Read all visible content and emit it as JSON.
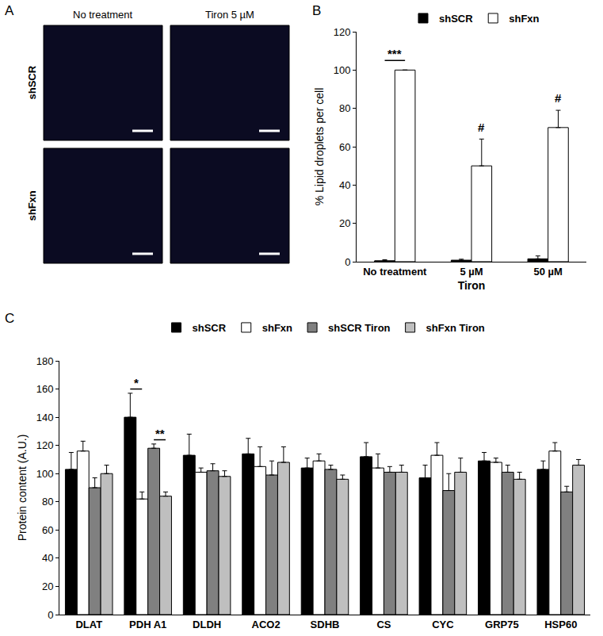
{
  "image_panel": {
    "panel_label": "A",
    "columns": [
      "No treatment",
      "Tiron 5 µM"
    ],
    "rows": [
      "shSCR",
      "shFxn"
    ]
  },
  "chart_data": [
    {
      "panel_label": "B",
      "type": "bar",
      "categories": [
        "No treatment",
        "5 µM",
        "50 µM"
      ],
      "x_label": "Tiron",
      "y_label": "% Lipid droplets per cell",
      "ylim": [
        0,
        120
      ],
      "yticks": [
        0,
        20,
        40,
        60,
        80,
        100,
        120
      ],
      "grid": false,
      "legend": "top",
      "series": [
        {
          "name": "shSCR",
          "color": "#000000",
          "values": [
            0.5,
            0.8,
            1.5
          ],
          "errors": [
            0.5,
            0.5,
            1.5
          ]
        },
        {
          "name": "shFxn",
          "color": "#ffffff",
          "values": [
            100,
            50,
            70
          ],
          "errors": [
            0,
            14,
            9
          ]
        }
      ],
      "annotations": [
        {
          "text": "***",
          "category": "No treatment",
          "y": 105,
          "bracket": [
            "shSCR",
            "shFxn"
          ]
        },
        {
          "text": "#",
          "category": "5 µM",
          "y": 66,
          "series": "shFxn"
        },
        {
          "text": "#",
          "category": "50 µM",
          "y": 81,
          "series": "shFxn"
        }
      ]
    },
    {
      "panel_label": "C",
      "type": "bar",
      "categories": [
        "DLAT",
        "PDH A1",
        "DLDH",
        "ACO2",
        "SDHB",
        "CS",
        "CYC",
        "GRP75",
        "HSP60"
      ],
      "y_label": "Protein content (A.U.)",
      "ylim": [
        0,
        180
      ],
      "yticks": [
        0,
        20,
        40,
        60,
        80,
        100,
        120,
        140,
        160,
        180
      ],
      "grid": false,
      "legend": "top",
      "series": [
        {
          "name": "shSCR",
          "color": "#000000",
          "values": [
            103,
            140,
            113,
            114,
            104,
            112,
            97,
            109,
            103
          ],
          "errors": [
            12,
            17,
            15,
            11,
            7,
            10,
            9,
            6,
            6
          ]
        },
        {
          "name": "shFxn",
          "color": "#ffffff",
          "values": [
            116,
            82,
            101,
            105,
            109,
            104,
            113,
            108,
            116
          ],
          "errors": [
            7,
            5,
            3,
            14,
            5,
            10,
            9,
            3,
            6
          ]
        },
        {
          "name": "shSCR Tiron",
          "color": "#808080",
          "values": [
            90,
            118,
            102,
            99,
            103,
            101,
            88,
            101,
            87
          ],
          "errors": [
            7,
            3,
            5,
            10,
            3,
            4,
            12,
            5,
            4
          ]
        },
        {
          "name": "shFxn Tiron",
          "color": "#bfbfbf",
          "values": [
            100,
            84,
            98,
            108,
            96,
            101,
            101,
            96,
            106
          ],
          "errors": [
            6,
            3,
            4,
            11,
            3,
            5,
            10,
            5,
            4
          ]
        }
      ],
      "annotations": [
        {
          "text": "*",
          "category": "PDH A1",
          "y": 160,
          "bracket": [
            "shSCR",
            "shFxn"
          ]
        },
        {
          "text": "**",
          "category": "PDH A1",
          "y": 124,
          "bracket": [
            "shSCR Tiron",
            "shFxn Tiron"
          ]
        }
      ]
    }
  ]
}
